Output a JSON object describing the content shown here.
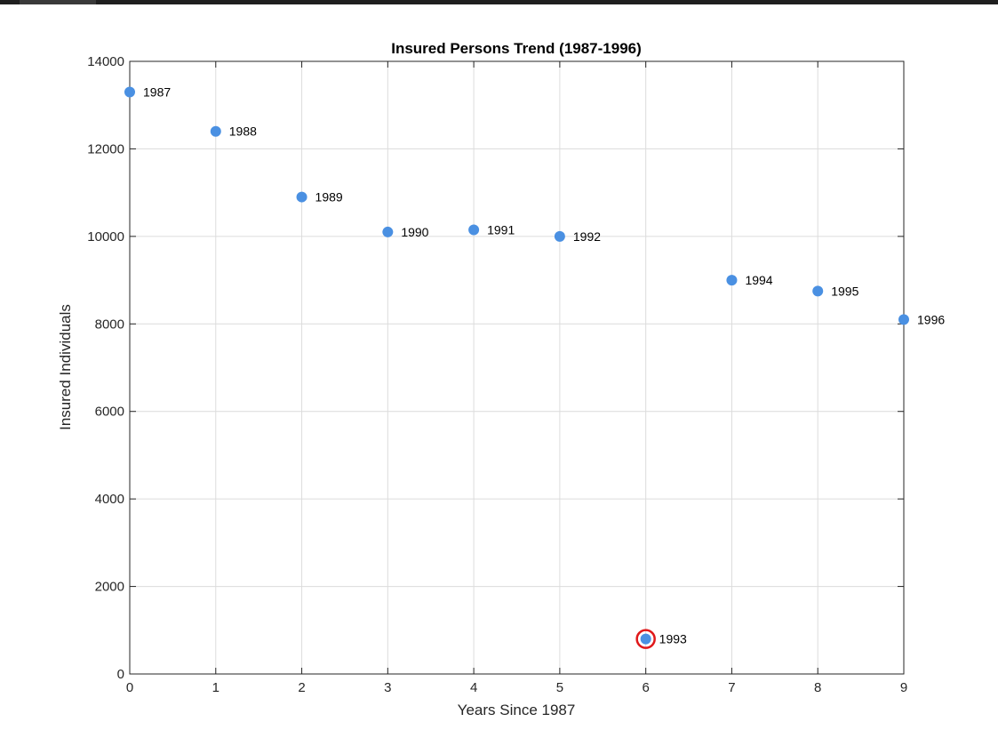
{
  "chart_data": {
    "type": "scatter",
    "title": "Insured Persons Trend (1987-1996)",
    "xlabel": "Years Since 1987",
    "ylabel": "Insured Individuals",
    "xlim": [
      0,
      9
    ],
    "ylim": [
      0,
      14000
    ],
    "xticks": [
      0,
      1,
      2,
      3,
      4,
      5,
      6,
      7,
      8,
      9
    ],
    "yticks": [
      0,
      2000,
      4000,
      6000,
      8000,
      10000,
      12000,
      14000
    ],
    "grid": true,
    "points": [
      {
        "x": 0,
        "y": 13300,
        "label": "1987"
      },
      {
        "x": 1,
        "y": 12400,
        "label": "1988"
      },
      {
        "x": 2,
        "y": 10900,
        "label": "1989"
      },
      {
        "x": 3,
        "y": 10100,
        "label": "1990"
      },
      {
        "x": 4,
        "y": 10150,
        "label": "1991"
      },
      {
        "x": 5,
        "y": 10000,
        "label": "1992"
      },
      {
        "x": 6,
        "y": 800,
        "label": "1993",
        "highlighted": true
      },
      {
        "x": 7,
        "y": 9000,
        "label": "1994"
      },
      {
        "x": 8,
        "y": 8750,
        "label": "1995"
      },
      {
        "x": 9,
        "y": 8100,
        "label": "1996"
      }
    ],
    "marker_color": "#4a90e2",
    "highlight_color": "#e0191b"
  }
}
